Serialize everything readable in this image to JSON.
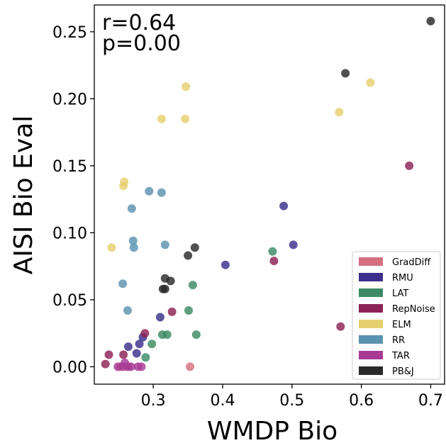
{
  "chart_data": {
    "type": "scatter",
    "xlabel": "WMDP Bio",
    "ylabel": "AISI Bio Eval",
    "xlim": [
      0.215,
      0.72
    ],
    "ylim": [
      -0.013,
      0.27
    ],
    "xticks": [
      0.3,
      0.4,
      0.5,
      0.6,
      0.7
    ],
    "xtick_labels": [
      "0.3",
      "0.4",
      "0.5",
      "0.6",
      "0.7"
    ],
    "yticks": [
      0.0,
      0.05,
      0.1,
      0.15,
      0.2,
      0.25
    ],
    "ytick_labels": [
      "0.00",
      "0.05",
      "0.10",
      "0.15",
      "0.20",
      "0.25"
    ],
    "annotations": [
      "r=0.64",
      "p=0.00"
    ],
    "legend_position": "lower-right",
    "grid": false,
    "series": [
      {
        "name": "GradDiff",
        "color": "#d4707f",
        "points": [
          [
            0.353,
            0.0
          ],
          [
            0.252,
            0.0
          ],
          [
            0.262,
            0.0
          ]
        ]
      },
      {
        "name": "RMU",
        "color": "#3b2f8c",
        "points": [
          [
            0.264,
            0.015
          ],
          [
            0.276,
            0.01
          ],
          [
            0.28,
            0.017
          ],
          [
            0.285,
            0.022
          ],
          [
            0.31,
            0.037
          ],
          [
            0.404,
            0.076
          ],
          [
            0.488,
            0.12
          ],
          [
            0.502,
            0.091
          ]
        ]
      },
      {
        "name": "LAT",
        "color": "#3b8a63",
        "points": [
          [
            0.289,
            0.007
          ],
          [
            0.298,
            0.017
          ],
          [
            0.313,
            0.024
          ],
          [
            0.32,
            0.024
          ],
          [
            0.351,
            0.042
          ],
          [
            0.357,
            0.061
          ],
          [
            0.362,
            0.024
          ],
          [
            0.472,
            0.086
          ]
        ]
      },
      {
        "name": "RepNoise",
        "color": "#8c2256",
        "points": [
          [
            0.231,
            0.002
          ],
          [
            0.236,
            0.009
          ],
          [
            0.257,
            0.009
          ],
          [
            0.288,
            0.025
          ],
          [
            0.327,
            0.041
          ],
          [
            0.474,
            0.079
          ],
          [
            0.57,
            0.03
          ],
          [
            0.669,
            0.15
          ]
        ]
      },
      {
        "name": "ELM",
        "color": "#e6cf6f",
        "points": [
          [
            0.24,
            0.089
          ],
          [
            0.257,
            0.135
          ],
          [
            0.258,
            0.138
          ],
          [
            0.312,
            0.185
          ],
          [
            0.346,
            0.185
          ],
          [
            0.347,
            0.209
          ],
          [
            0.568,
            0.19
          ],
          [
            0.613,
            0.212
          ]
        ]
      },
      {
        "name": "RR",
        "color": "#5b92b0",
        "points": [
          [
            0.256,
            0.062
          ],
          [
            0.263,
            0.042
          ],
          [
            0.269,
            0.118
          ],
          [
            0.271,
            0.094
          ],
          [
            0.272,
            0.089
          ],
          [
            0.294,
            0.131
          ],
          [
            0.312,
            0.13
          ],
          [
            0.317,
            0.091
          ]
        ]
      },
      {
        "name": "TAR",
        "color": "#a83a95",
        "points": [
          [
            0.249,
            0.0
          ],
          [
            0.256,
            0.0
          ],
          [
            0.259,
            0.003
          ],
          [
            0.264,
            0.0
          ],
          [
            0.268,
            0.0
          ],
          [
            0.278,
            0.0
          ],
          [
            0.283,
            0.0
          ]
        ]
      },
      {
        "name": "PB&J",
        "color": "#2a2a2a",
        "points": [
          [
            0.314,
            0.058
          ],
          [
            0.317,
            0.058
          ],
          [
            0.317,
            0.066
          ],
          [
            0.325,
            0.064
          ],
          [
            0.35,
            0.083
          ],
          [
            0.36,
            0.089
          ],
          [
            0.577,
            0.219
          ],
          [
            0.7,
            0.258
          ]
        ]
      }
    ]
  }
}
